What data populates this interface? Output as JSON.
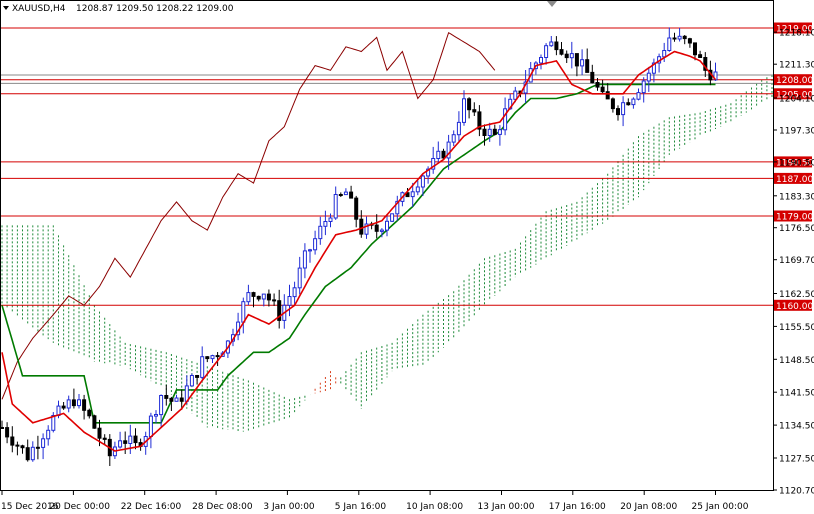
{
  "header": {
    "symbol": "XAUUSD,H4",
    "ohlc": "1208.87 1209.50 1208.22 1209.00"
  },
  "colors": {
    "bull_candle": "#1f2bd6",
    "bear_candle": "#000000",
    "tenkan": "#e00000",
    "kijun": "#007a00",
    "chikou": "#8b0000",
    "kumo_bull": "#1e8a3a",
    "kumo_bear": "#d8401e",
    "level_line": "#d40000"
  },
  "chart_data": {
    "type": "candlestick",
    "ylim": [
      1120.7,
      1222.4
    ],
    "y_ticks": [
      "1218.10",
      "1211.30",
      "1204.10",
      "1197.30",
      "1190.50",
      "1183.30",
      "1176.50",
      "1169.70",
      "1162.50",
      "1155.50",
      "1148.50",
      "1141.50",
      "1134.50",
      "1127.50",
      "1120.70"
    ],
    "x_ticks": [
      "15 Dec 2016",
      "20 Dec 00:00",
      "22 Dec 16:00",
      "28 Dec 08:00",
      "3 Jan 00:00",
      "5 Jan 16:00",
      "10 Jan 08:00",
      "13 Jan 00:00",
      "17 Jan 16:00",
      "20 Jan 08:00",
      "25 Jan 00:00"
    ],
    "levels": [
      "1219.00",
      "1208.00",
      "1205.00",
      "1190.50",
      "1187.00",
      "1179.00",
      "1160.00"
    ],
    "gray_lines": [
      1209.0,
      1207.2
    ],
    "price_series": [
      [
        0,
        1134
      ],
      [
        5,
        1128
      ],
      [
        10,
        1136
      ],
      [
        14,
        1140
      ],
      [
        17,
        1136
      ],
      [
        21,
        1128
      ],
      [
        23,
        1132
      ],
      [
        26,
        1130
      ],
      [
        28,
        1133
      ],
      [
        31,
        1141
      ],
      [
        34,
        1139
      ],
      [
        37,
        1144
      ],
      [
        39,
        1148
      ],
      [
        42,
        1150
      ],
      [
        44,
        1152
      ],
      [
        46,
        1158
      ],
      [
        48,
        1162
      ],
      [
        51,
        1163
      ],
      [
        54,
        1158
      ],
      [
        57,
        1164
      ],
      [
        59,
        1170
      ],
      [
        62,
        1176
      ],
      [
        65,
        1182
      ],
      [
        67,
        1184
      ],
      [
        70,
        1176
      ],
      [
        73,
        1176
      ],
      [
        76,
        1180
      ],
      [
        79,
        1184
      ],
      [
        82,
        1188
      ],
      [
        84,
        1190
      ],
      [
        87,
        1194
      ],
      [
        90,
        1203
      ],
      [
        93,
        1198
      ],
      [
        96,
        1196
      ],
      [
        98,
        1201
      ],
      [
        101,
        1206
      ],
      [
        103,
        1210
      ],
      [
        106,
        1215
      ],
      [
        108,
        1216
      ],
      [
        112,
        1212
      ],
      [
        115,
        1208
      ],
      [
        117,
        1204
      ],
      [
        120,
        1202
      ],
      [
        123,
        1205
      ],
      [
        127,
        1211
      ],
      [
        130,
        1217
      ],
      [
        133,
        1216
      ],
      [
        135,
        1214
      ],
      [
        137,
        1210
      ],
      [
        139,
        1209
      ]
    ],
    "tenkan": [
      [
        0,
        1150
      ],
      [
        2,
        1139
      ],
      [
        6,
        1135
      ],
      [
        12,
        1137
      ],
      [
        16,
        1133
      ],
      [
        22,
        1129
      ],
      [
        27,
        1130
      ],
      [
        31,
        1134
      ],
      [
        35,
        1138
      ],
      [
        39,
        1144
      ],
      [
        44,
        1151
      ],
      [
        48,
        1158
      ],
      [
        52,
        1156
      ],
      [
        57,
        1160
      ],
      [
        61,
        1168
      ],
      [
        65,
        1175
      ],
      [
        69,
        1176
      ],
      [
        74,
        1178
      ],
      [
        78,
        1183
      ],
      [
        82,
        1188
      ],
      [
        86,
        1191
      ],
      [
        90,
        1196
      ],
      [
        93,
        1198
      ],
      [
        97,
        1199
      ],
      [
        101,
        1205
      ],
      [
        104,
        1211
      ],
      [
        108,
        1212
      ],
      [
        111,
        1207
      ],
      [
        115,
        1205
      ],
      [
        118,
        1205
      ],
      [
        121,
        1205
      ],
      [
        124,
        1209
      ],
      [
        128,
        1212
      ],
      [
        131,
        1214
      ],
      [
        134,
        1213
      ],
      [
        136,
        1212
      ],
      [
        139,
        1208
      ]
    ],
    "kijun": [
      [
        0,
        1160
      ],
      [
        4,
        1145
      ],
      [
        10,
        1145
      ],
      [
        16,
        1145
      ],
      [
        18,
        1135
      ],
      [
        26,
        1135
      ],
      [
        31,
        1135
      ],
      [
        34,
        1142
      ],
      [
        38,
        1142
      ],
      [
        42,
        1142
      ],
      [
        44,
        1145
      ],
      [
        49,
        1150
      ],
      [
        52,
        1150
      ],
      [
        56,
        1153
      ],
      [
        59,
        1158
      ],
      [
        63,
        1164
      ],
      [
        68,
        1168
      ],
      [
        72,
        1173
      ],
      [
        76,
        1177
      ],
      [
        80,
        1181
      ],
      [
        83,
        1185
      ],
      [
        86,
        1189
      ],
      [
        90,
        1192
      ],
      [
        94,
        1195
      ],
      [
        97,
        1197
      ],
      [
        100,
        1201
      ],
      [
        103,
        1204
      ],
      [
        108,
        1204
      ],
      [
        112,
        1205
      ],
      [
        116,
        1207
      ],
      [
        120,
        1207
      ],
      [
        124,
        1207
      ],
      [
        128,
        1207
      ],
      [
        132,
        1207
      ],
      [
        136,
        1207
      ],
      [
        139,
        1207
      ]
    ],
    "chikou": [
      [
        0,
        1140
      ],
      [
        3,
        1148
      ],
      [
        6,
        1153
      ],
      [
        10,
        1158
      ],
      [
        13,
        1162
      ],
      [
        16,
        1160
      ],
      [
        19,
        1164
      ],
      [
        22,
        1170
      ],
      [
        25,
        1166
      ],
      [
        28,
        1172
      ],
      [
        31,
        1178
      ],
      [
        34,
        1182
      ],
      [
        37,
        1178
      ],
      [
        40,
        1176
      ],
      [
        43,
        1183
      ],
      [
        46,
        1188
      ],
      [
        49,
        1186
      ],
      [
        52,
        1195
      ],
      [
        55,
        1198
      ],
      [
        58,
        1206
      ],
      [
        61,
        1211
      ],
      [
        64,
        1210
      ],
      [
        67,
        1215
      ],
      [
        70,
        1214
      ],
      [
        73,
        1217
      ],
      [
        75,
        1210
      ],
      [
        78,
        1214
      ],
      [
        81,
        1204
      ],
      [
        84,
        1208
      ],
      [
        87,
        1218
      ],
      [
        90,
        1216
      ],
      [
        93,
        1214
      ],
      [
        96,
        1210
      ]
    ],
    "kumo_a": [
      [
        0,
        1177
      ],
      [
        10,
        1177
      ],
      [
        18,
        1160
      ],
      [
        24,
        1152
      ],
      [
        32,
        1150
      ],
      [
        40,
        1147
      ],
      [
        48,
        1144
      ],
      [
        56,
        1140
      ],
      [
        64,
        1142
      ],
      [
        70,
        1150
      ],
      [
        76,
        1152
      ],
      [
        82,
        1158
      ],
      [
        88,
        1163
      ],
      [
        94,
        1170
      ],
      [
        100,
        1172
      ],
      [
        106,
        1180
      ],
      [
        112,
        1182
      ],
      [
        118,
        1188
      ],
      [
        124,
        1196
      ],
      [
        130,
        1200
      ],
      [
        136,
        1201
      ],
      [
        142,
        1203
      ],
      [
        148,
        1208
      ],
      [
        150,
        1209
      ]
    ],
    "kumo_b": [
      [
        0,
        1160
      ],
      [
        10,
        1152
      ],
      [
        18,
        1148
      ],
      [
        24,
        1147
      ],
      [
        32,
        1142
      ],
      [
        40,
        1134
      ],
      [
        48,
        1133
      ],
      [
        56,
        1136
      ],
      [
        64,
        1146
      ],
      [
        70,
        1138
      ],
      [
        76,
        1146
      ],
      [
        82,
        1147
      ],
      [
        88,
        1153
      ],
      [
        94,
        1160
      ],
      [
        100,
        1166
      ],
      [
        106,
        1170
      ],
      [
        112,
        1174
      ],
      [
        118,
        1178
      ],
      [
        124,
        1183
      ],
      [
        130,
        1192
      ],
      [
        136,
        1196
      ],
      [
        142,
        1199
      ],
      [
        148,
        1203
      ],
      [
        150,
        1204
      ]
    ]
  }
}
